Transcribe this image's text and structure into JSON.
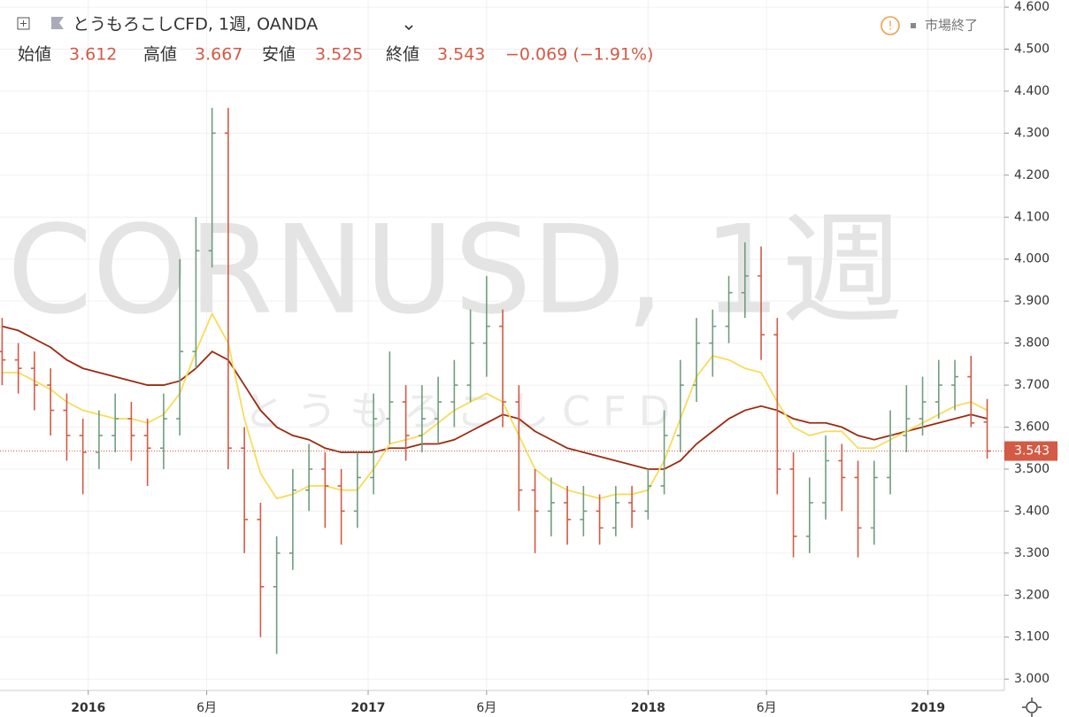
{
  "header": {
    "symbol": "とうもろこしCFD, 1週, OANDA",
    "open_label": "始値",
    "open": "3.612",
    "high_label": "高値",
    "high": "3.667",
    "low_label": "安値",
    "low": "3.525",
    "close_label": "終値",
    "close": "3.543",
    "change": "−0.069 (−1.91%)",
    "status": "市場終了"
  },
  "chart_data": {
    "type": "ohlc",
    "watermark": "CORNUSD, 1週",
    "watermark_sub": "とうもろこしCFD",
    "x": [
      -16,
      -13,
      -10,
      -7,
      -4,
      -1,
      2,
      5,
      8,
      11,
      14,
      17,
      20,
      23,
      26,
      29,
      32,
      35,
      38,
      41,
      44,
      47,
      50,
      53,
      56,
      59,
      62,
      65,
      68,
      71,
      74,
      77,
      80,
      83,
      86,
      89,
      92,
      95,
      98,
      101,
      104,
      107,
      110,
      113,
      116,
      119,
      122,
      125,
      128,
      131,
      134,
      137,
      140,
      143,
      146,
      149,
      152,
      155,
      158,
      161,
      164,
      167
    ],
    "open": [
      3.78,
      3.76,
      3.74,
      3.7,
      3.64,
      3.58,
      3.54,
      3.58,
      3.62,
      3.58,
      3.55,
      3.62,
      3.78,
      4.02,
      4.3,
      3.55,
      3.38,
      3.22,
      3.3,
      3.45,
      3.5,
      3.46,
      3.4,
      3.48,
      3.62,
      3.66,
      3.58,
      3.62,
      3.66,
      3.7,
      3.8,
      3.84,
      3.66,
      3.45,
      3.4,
      3.42,
      3.38,
      3.4,
      3.36,
      3.42,
      3.4,
      3.46,
      3.58,
      3.7,
      3.8,
      3.84,
      3.92,
      3.96,
      3.82,
      3.5,
      3.34,
      3.42,
      3.52,
      3.48,
      3.36,
      3.48,
      3.58,
      3.62,
      3.66,
      3.7,
      3.72,
      3.612
    ],
    "high": [
      3.86,
      3.8,
      3.78,
      3.74,
      3.68,
      3.62,
      3.64,
      3.68,
      3.66,
      3.62,
      3.68,
      4.0,
      4.1,
      4.36,
      4.36,
      3.6,
      3.42,
      3.34,
      3.5,
      3.56,
      3.54,
      3.5,
      3.54,
      3.68,
      3.78,
      3.7,
      3.7,
      3.72,
      3.76,
      3.88,
      3.96,
      3.88,
      3.7,
      3.5,
      3.48,
      3.46,
      3.46,
      3.44,
      3.46,
      3.46,
      3.5,
      3.64,
      3.76,
      3.86,
      3.88,
      3.96,
      4.04,
      4.03,
      3.86,
      3.54,
      3.48,
      3.58,
      3.56,
      3.52,
      3.52,
      3.64,
      3.7,
      3.72,
      3.76,
      3.76,
      3.77,
      3.667
    ],
    "low": [
      3.7,
      3.68,
      3.64,
      3.58,
      3.52,
      3.44,
      3.5,
      3.54,
      3.52,
      3.46,
      3.5,
      3.58,
      3.74,
      3.98,
      3.5,
      3.3,
      3.1,
      3.06,
      3.26,
      3.4,
      3.36,
      3.32,
      3.36,
      3.44,
      3.56,
      3.52,
      3.54,
      3.56,
      3.6,
      3.66,
      3.72,
      3.6,
      3.4,
      3.3,
      3.34,
      3.32,
      3.34,
      3.32,
      3.34,
      3.36,
      3.38,
      3.44,
      3.54,
      3.66,
      3.72,
      3.8,
      3.86,
      3.76,
      3.44,
      3.29,
      3.3,
      3.38,
      3.4,
      3.29,
      3.32,
      3.44,
      3.54,
      3.58,
      3.62,
      3.64,
      3.6,
      3.525
    ],
    "close": [
      3.76,
      3.74,
      3.7,
      3.64,
      3.58,
      3.54,
      3.58,
      3.62,
      3.58,
      3.55,
      3.62,
      3.78,
      4.02,
      4.3,
      3.55,
      3.38,
      3.22,
      3.3,
      3.45,
      3.5,
      3.46,
      3.4,
      3.48,
      3.62,
      3.66,
      3.58,
      3.62,
      3.66,
      3.7,
      3.8,
      3.84,
      3.66,
      3.45,
      3.4,
      3.42,
      3.38,
      3.4,
      3.36,
      3.42,
      3.4,
      3.46,
      3.58,
      3.7,
      3.8,
      3.84,
      3.92,
      3.96,
      3.82,
      3.5,
      3.34,
      3.42,
      3.52,
      3.48,
      3.36,
      3.48,
      3.58,
      3.62,
      3.66,
      3.7,
      3.72,
      3.61,
      3.543
    ],
    "up_color": "#6f9e7e",
    "down_color": "#d35a44",
    "series": [
      {
        "color": "#9c2a10",
        "values": [
          3.84,
          3.83,
          3.81,
          3.79,
          3.76,
          3.74,
          3.73,
          3.72,
          3.71,
          3.7,
          3.7,
          3.71,
          3.74,
          3.78,
          3.76,
          3.7,
          3.64,
          3.6,
          3.58,
          3.57,
          3.55,
          3.54,
          3.54,
          3.54,
          3.55,
          3.55,
          3.56,
          3.56,
          3.57,
          3.59,
          3.61,
          3.63,
          3.62,
          3.59,
          3.57,
          3.55,
          3.54,
          3.53,
          3.52,
          3.51,
          3.5,
          3.5,
          3.52,
          3.56,
          3.59,
          3.62,
          3.64,
          3.65,
          3.64,
          3.62,
          3.61,
          3.61,
          3.6,
          3.58,
          3.57,
          3.58,
          3.59,
          3.6,
          3.61,
          3.62,
          3.63,
          3.62
        ]
      },
      {
        "color": "#f7dc5a",
        "values": [
          3.73,
          3.73,
          3.71,
          3.69,
          3.66,
          3.64,
          3.63,
          3.62,
          3.62,
          3.61,
          3.63,
          3.68,
          3.78,
          3.87,
          3.8,
          3.62,
          3.49,
          3.43,
          3.44,
          3.46,
          3.46,
          3.45,
          3.45,
          3.5,
          3.56,
          3.57,
          3.58,
          3.61,
          3.64,
          3.66,
          3.68,
          3.66,
          3.58,
          3.5,
          3.47,
          3.45,
          3.44,
          3.43,
          3.44,
          3.44,
          3.45,
          3.52,
          3.62,
          3.72,
          3.77,
          3.76,
          3.74,
          3.73,
          3.66,
          3.6,
          3.58,
          3.59,
          3.59,
          3.55,
          3.55,
          3.57,
          3.59,
          3.61,
          3.63,
          3.65,
          3.66,
          3.64
        ]
      }
    ],
    "last_price": {
      "value": 3.543,
      "label": "3.543"
    },
    "xlim": [
      -16.4,
      170.2
    ],
    "ylim": [
      2.973,
      4.617
    ],
    "xticks": [
      {
        "value": 0,
        "label": "2016"
      },
      {
        "value": 22,
        "label": "6月"
      },
      {
        "value": 52,
        "label": "2017"
      },
      {
        "value": 74,
        "label": "6月"
      },
      {
        "value": 104,
        "label": "2018"
      },
      {
        "value": 126,
        "label": "6月"
      },
      {
        "value": 156,
        "label": "2019"
      }
    ],
    "yticks": [
      {
        "value": 3.0,
        "label": "3.000"
      },
      {
        "value": 3.1,
        "label": "3.100"
      },
      {
        "value": 3.2,
        "label": "3.200"
      },
      {
        "value": 3.3,
        "label": "3.300"
      },
      {
        "value": 3.4,
        "label": "3.400"
      },
      {
        "value": 3.5,
        "label": "3.500"
      },
      {
        "value": 3.6,
        "label": "3.600"
      },
      {
        "value": 3.7,
        "label": "3.700"
      },
      {
        "value": 3.8,
        "label": "3.800"
      },
      {
        "value": 3.9,
        "label": "3.900"
      },
      {
        "value": 4.0,
        "label": "4.000"
      },
      {
        "value": 4.1,
        "label": "4.100"
      },
      {
        "value": 4.2,
        "label": "4.200"
      },
      {
        "value": 4.3,
        "label": "4.300"
      },
      {
        "value": 4.4,
        "label": "4.400"
      },
      {
        "value": 4.5,
        "label": "4.500"
      },
      {
        "value": 4.6,
        "label": "4.600"
      }
    ],
    "grid": true
  }
}
